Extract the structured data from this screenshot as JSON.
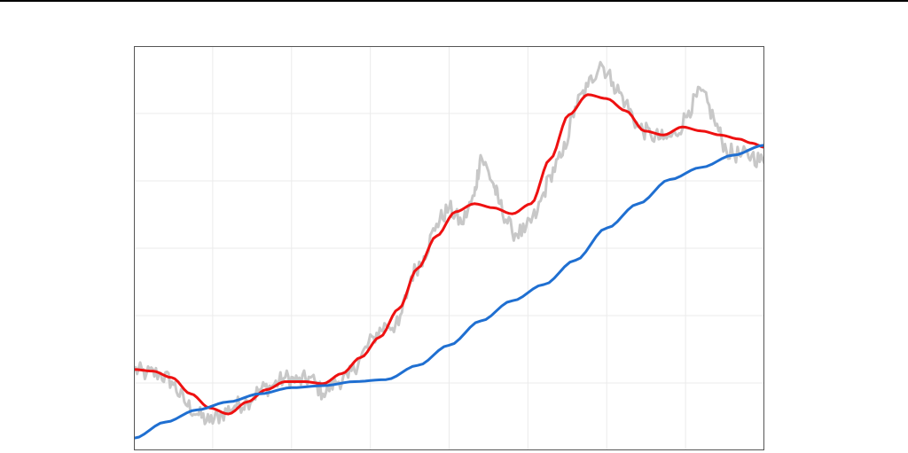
{
  "page": {
    "top_rule_color": "#000000",
    "background": "#ffffff"
  },
  "chart_data": {
    "type": "line",
    "grid": true,
    "legend": "none",
    "frame_color": "#555555",
    "grid_color": "#ebebeb",
    "title": "",
    "xlabel": "",
    "ylabel": "",
    "x_ticks_shown": false,
    "y_ticks_shown": false,
    "x_grid_count": 8,
    "y_grid_count": 6,
    "xlim": [
      0,
      100
    ],
    "ylim": [
      0,
      100
    ],
    "series": [
      {
        "role": "raw-price",
        "color": "#c8c8c8",
        "width": 3,
        "noise": true,
        "points": [
          [
            0,
            20
          ],
          [
            2,
            19
          ],
          [
            4,
            19
          ],
          [
            6,
            17
          ],
          [
            8,
            12
          ],
          [
            10,
            9
          ],
          [
            12,
            7
          ],
          [
            14,
            9
          ],
          [
            16,
            11
          ],
          [
            18,
            12
          ],
          [
            20,
            15
          ],
          [
            22,
            16
          ],
          [
            24,
            18
          ],
          [
            26,
            17
          ],
          [
            28,
            18
          ],
          [
            30,
            14
          ],
          [
            32,
            17
          ],
          [
            34,
            18
          ],
          [
            36,
            23
          ],
          [
            38,
            28
          ],
          [
            40,
            31
          ],
          [
            42,
            31
          ],
          [
            44,
            43
          ],
          [
            46,
            48
          ],
          [
            48,
            56
          ],
          [
            50,
            60
          ],
          [
            52,
            56
          ],
          [
            54,
            63
          ],
          [
            55,
            73
          ],
          [
            57,
            66
          ],
          [
            58,
            61
          ],
          [
            60,
            54
          ],
          [
            62,
            54
          ],
          [
            64,
            59
          ],
          [
            66,
            68
          ],
          [
            68,
            73
          ],
          [
            70,
            85
          ],
          [
            72,
            90
          ],
          [
            74,
            96
          ],
          [
            76,
            91
          ],
          [
            78,
            86
          ],
          [
            80,
            80
          ],
          [
            82,
            78
          ],
          [
            84,
            77
          ],
          [
            86,
            78
          ],
          [
            88,
            84
          ],
          [
            90,
            89
          ],
          [
            92,
            82
          ],
          [
            94,
            74
          ],
          [
            96,
            73
          ],
          [
            98,
            73
          ],
          [
            100,
            71
          ]
        ]
      },
      {
        "role": "short-moving-average",
        "color": "#ee1111",
        "width": 3,
        "noise": false,
        "points": [
          [
            0,
            20
          ],
          [
            3,
            19.6
          ],
          [
            6,
            18
          ],
          [
            9,
            14
          ],
          [
            12,
            10.5
          ],
          [
            15,
            9
          ],
          [
            18,
            12
          ],
          [
            21,
            15
          ],
          [
            24,
            17
          ],
          [
            27,
            17
          ],
          [
            30,
            16.5
          ],
          [
            33,
            19
          ],
          [
            36,
            23
          ],
          [
            39,
            28
          ],
          [
            42,
            35
          ],
          [
            45,
            45
          ],
          [
            48,
            53
          ],
          [
            51,
            59
          ],
          [
            54,
            61
          ],
          [
            57,
            60
          ],
          [
            60,
            58.5
          ],
          [
            63,
            61
          ],
          [
            66,
            72
          ],
          [
            69,
            83
          ],
          [
            72,
            88
          ],
          [
            75,
            87
          ],
          [
            78,
            84
          ],
          [
            81,
            79
          ],
          [
            84,
            78
          ],
          [
            87,
            80
          ],
          [
            90,
            79
          ],
          [
            93,
            78
          ],
          [
            96,
            77
          ],
          [
            98,
            76
          ],
          [
            100,
            75
          ]
        ]
      },
      {
        "role": "long-moving-average",
        "color": "#1f6fd1",
        "width": 3,
        "noise": false,
        "points": [
          [
            0,
            3
          ],
          [
            5,
            7
          ],
          [
            10,
            10
          ],
          [
            15,
            12
          ],
          [
            20,
            14
          ],
          [
            25,
            15.5
          ],
          [
            30,
            16
          ],
          [
            35,
            17
          ],
          [
            40,
            17.5
          ],
          [
            45,
            21
          ],
          [
            50,
            26
          ],
          [
            55,
            32
          ],
          [
            60,
            37
          ],
          [
            65,
            41
          ],
          [
            70,
            47
          ],
          [
            75,
            55
          ],
          [
            80,
            61
          ],
          [
            85,
            67
          ],
          [
            90,
            70
          ],
          [
            95,
            73
          ],
          [
            100,
            75.5
          ]
        ]
      }
    ]
  }
}
